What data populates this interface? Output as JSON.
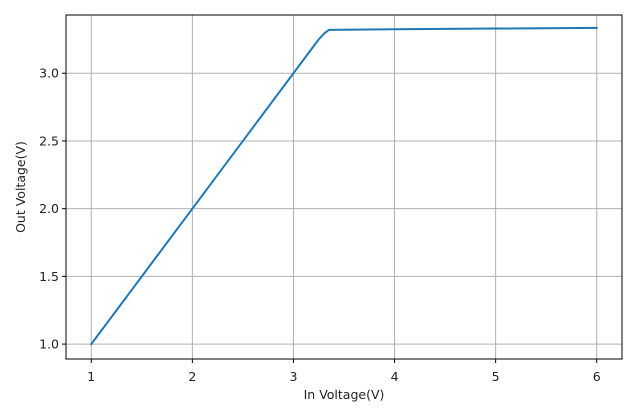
{
  "chart_data": {
    "type": "line",
    "title": "",
    "xlabel": "In Voltage(V)",
    "ylabel": "Out Voltage(V)",
    "xlim": [
      0.75,
      6.25
    ],
    "ylim": [
      0.89,
      3.43
    ],
    "xticks": [
      1,
      2,
      3,
      4,
      5,
      6
    ],
    "xtick_labels": [
      "1",
      "2",
      "3",
      "4",
      "5",
      "6"
    ],
    "yticks": [
      1.0,
      1.5,
      2.0,
      2.5,
      3.0
    ],
    "ytick_labels": [
      "1.0",
      "1.5",
      "2.0",
      "2.5",
      "3.0"
    ],
    "grid": true,
    "series": [
      {
        "color": "#1f77b4",
        "x": [
          1.0,
          1.5,
          2.0,
          2.5,
          3.0,
          3.2,
          3.25,
          3.3,
          3.35,
          4.0,
          5.0,
          6.0
        ],
        "y": [
          1.0,
          1.5,
          2.0,
          2.5,
          3.0,
          3.2,
          3.25,
          3.29,
          3.32,
          3.325,
          3.33,
          3.335
        ]
      }
    ]
  },
  "colors": {
    "line": "#1f77b4",
    "grid": "#b0b0b0",
    "axes": "#000000"
  }
}
